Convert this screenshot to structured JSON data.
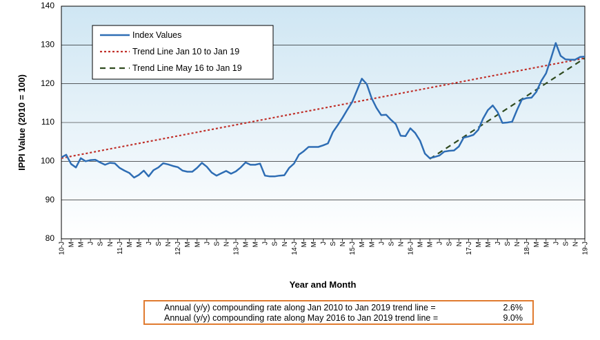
{
  "chart_data": {
    "type": "line",
    "xlabel": "Year and Month",
    "ylabel": "IPPI Value (2010 = 100)",
    "ylim": [
      80,
      140
    ],
    "yticks": [
      80,
      90,
      100,
      110,
      120,
      130,
      140
    ],
    "x_tick_labels": [
      "10-J",
      "M",
      "M",
      "J",
      "S",
      "N",
      "11-J",
      "M",
      "M",
      "J",
      "S",
      "N",
      "12-J",
      "M",
      "M",
      "J",
      "S",
      "N",
      "13-J",
      "M",
      "M",
      "J",
      "S",
      "N",
      "14-J",
      "M",
      "M",
      "J",
      "S",
      "N",
      "15-J",
      "M",
      "M",
      "J",
      "S",
      "N",
      "16-J",
      "M",
      "M",
      "J",
      "S",
      "N",
      "17-J",
      "M",
      "M",
      "J",
      "S",
      "N",
      "18-J",
      "M",
      "M",
      "J",
      "S",
      "N",
      "19-J"
    ],
    "grid": "horizontal",
    "plot_background": "gradient light blue",
    "legend_position": "top-left",
    "series": [
      {
        "name": "Index Values",
        "color": "#2e6db4",
        "style": "solid",
        "values": [
          101.0,
          101.7,
          99.3,
          98.4,
          100.8,
          100.0,
          100.3,
          100.4,
          99.7,
          99.1,
          99.6,
          99.5,
          98.3,
          97.6,
          97.0,
          95.8,
          96.5,
          97.6,
          96.1,
          97.7,
          98.4,
          99.5,
          99.2,
          98.8,
          98.5,
          97.6,
          97.3,
          97.3,
          98.3,
          99.6,
          98.6,
          97.1,
          96.3,
          96.9,
          97.5,
          96.8,
          97.4,
          98.4,
          99.7,
          99.1,
          99.1,
          99.4,
          96.3,
          96.1,
          96.1,
          96.3,
          96.4,
          98.3,
          99.4,
          101.7,
          102.6,
          103.7,
          103.7,
          103.7,
          104.1,
          104.6,
          107.5,
          109.3,
          111.2,
          113.3,
          115.3,
          118.3,
          121.3,
          119.9,
          116.3,
          113.8,
          111.9,
          112.0,
          110.7,
          109.6,
          106.6,
          106.5,
          108.5,
          107.3,
          105.3,
          102.0,
          100.8,
          101.1,
          101.5,
          102.5,
          102.7,
          102.8,
          103.8,
          106.1,
          106.4,
          106.8,
          108.1,
          111.0,
          113.2,
          114.4,
          112.7,
          109.9,
          110.0,
          110.2,
          113.2,
          115.9,
          116.3,
          116.4,
          117.9,
          120.7,
          122.7,
          126.5,
          130.5,
          127.2,
          126.3,
          126.2,
          126.2,
          126.9,
          127.0
        ]
      },
      {
        "name": "Trend Line Jan 10 to Jan 19",
        "color": "#c0302a",
        "style": "dotted",
        "start": {
          "index": 0,
          "value": 100.8
        },
        "end": {
          "index": 108,
          "value": 126.6
        }
      },
      {
        "name": "Trend Line May 16 to Jan 19",
        "color": "#2f4a1f",
        "style": "dashed",
        "start": {
          "index": 76,
          "value": 100.6
        },
        "end": {
          "index": 108,
          "value": 126.6
        }
      }
    ]
  },
  "notes": [
    {
      "label": "Annual (y/y) compounding rate along Jan 2010 to Jan 2019 trend line =",
      "value": "2.6%"
    },
    {
      "label": "Annual (y/y) compounding rate along May 2016 to Jan 2019 trend line =",
      "value": "9.0%"
    }
  ],
  "colors": {
    "note_border": "#e07a2e",
    "plot_bg_top": "#cfe6f3",
    "plot_bg_bottom": "#ffffff"
  }
}
